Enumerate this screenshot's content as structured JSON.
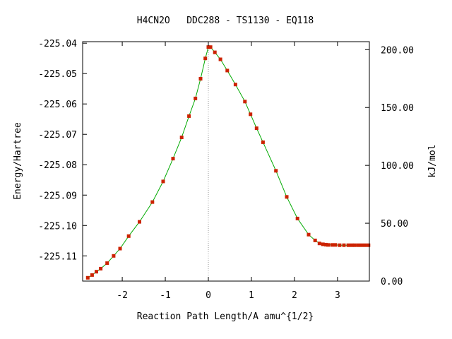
{
  "chart_data": {
    "type": "line",
    "title": "H4CN2O   DDC288 - TS1130 - EQ118",
    "xlabel": "Reaction Path Length/A amu^{1/2}",
    "ylabel": "Energy/Hartree",
    "y2label": "kJ/mol",
    "xlim": [
      -2.92,
      3.74
    ],
    "ylim": [
      -225.1183,
      -225.0395
    ],
    "y2lim": [
      0.0,
      206.9
    ],
    "x_ticks": [
      {
        "value": -2,
        "label": "-2"
      },
      {
        "value": -1,
        "label": "-1"
      },
      {
        "value": 0,
        "label": "0"
      },
      {
        "value": 1,
        "label": "1"
      },
      {
        "value": 2,
        "label": "2"
      },
      {
        "value": 3,
        "label": "3"
      }
    ],
    "y_ticks": [
      {
        "value": -225.04,
        "label": "-225.04"
      },
      {
        "value": -225.05,
        "label": "-225.05"
      },
      {
        "value": -225.06,
        "label": "-225.06"
      },
      {
        "value": -225.07,
        "label": "-225.07"
      },
      {
        "value": -225.08,
        "label": "-225.08"
      },
      {
        "value": -225.09,
        "label": "-225.09"
      },
      {
        "value": -225.1,
        "label": "-225.10"
      },
      {
        "value": -225.11,
        "label": "-225.11"
      }
    ],
    "y2_ticks": [
      {
        "value": 200,
        "label": "200.00"
      },
      {
        "value": 150,
        "label": "150.00"
      },
      {
        "value": 100,
        "label": "100.00"
      },
      {
        "value": 50,
        "label": "50.00"
      },
      {
        "value": 0,
        "label": "0.00"
      }
    ],
    "ts_marker_x": 0.0,
    "line_color": "#00aa00",
    "point_color": "#cc2200",
    "ts_line_color": "#999999",
    "points": {
      "x": [
        -2.8,
        -2.7,
        -2.6,
        -2.5,
        -2.35,
        -2.2,
        -2.05,
        -1.85,
        -1.6,
        -1.3,
        -1.05,
        -0.82,
        -0.62,
        -0.45,
        -0.3,
        -0.18,
        -0.07,
        0.0,
        0.05,
        0.15,
        0.28,
        0.44,
        0.63,
        0.85,
        0.98,
        1.12,
        1.27,
        1.57,
        1.82,
        2.07,
        2.33,
        2.48,
        2.58,
        2.66,
        2.73,
        2.78,
        2.87,
        2.95,
        3.05,
        3.15,
        3.25,
        3.33,
        3.4,
        3.48,
        3.56,
        3.64,
        3.72
      ],
      "y": [
        -225.1172,
        -225.1163,
        -225.1152,
        -225.1142,
        -225.1124,
        -225.11,
        -225.1076,
        -225.1035,
        -225.0988,
        -225.0923,
        -225.0855,
        -225.078,
        -225.071,
        -225.064,
        -225.0582,
        -225.0517,
        -225.045,
        -225.0413,
        -225.0413,
        -225.043,
        -225.0453,
        -225.049,
        -225.0536,
        -225.0592,
        -225.0634,
        -225.068,
        -225.0726,
        -225.082,
        -225.0906,
        -225.0977,
        -225.103,
        -225.1049,
        -225.1059,
        -225.1062,
        -225.1063,
        -225.1064,
        -225.1064,
        -225.1064,
        -225.1065,
        -225.1065,
        -225.1065,
        -225.1065,
        -225.1065,
        -225.1065,
        -225.1065,
        -225.1065,
        -225.1065
      ]
    }
  }
}
